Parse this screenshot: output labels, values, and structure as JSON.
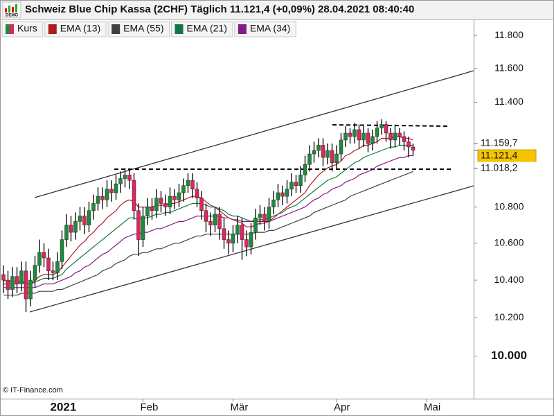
{
  "chart_data": {
    "type": "candlestick",
    "title": "Schweiz Blue Chip Kassa (2CHF) Täglich 11.121,4 (+0,09%) 28.04.2021 08:40:40",
    "logo": "DEMO",
    "copyright": "© IT-Finance.com",
    "log_scale": true,
    "grid": false,
    "ylim": [
      9.783,
      11.898
    ],
    "yticks": [
      {
        "value": 10.0,
        "label": "10.000",
        "bold": true
      },
      {
        "value": 10.2,
        "label": "10.200"
      },
      {
        "value": 10.4,
        "label": "10.400"
      },
      {
        "value": 10.6,
        "label": "10.600"
      },
      {
        "value": 10.8,
        "label": "10.800"
      },
      {
        "value": 11.4,
        "label": "11.400"
      },
      {
        "value": 11.6,
        "label": "11.600"
      },
      {
        "value": 11.8,
        "label": "11.800"
      }
    ],
    "categories": [
      null,
      null,
      null,
      null,
      null,
      null,
      null,
      null,
      null,
      null,
      null,
      "2021",
      null,
      null,
      null,
      null,
      null,
      null,
      null,
      null,
      null,
      null,
      null,
      null,
      null,
      null,
      null,
      null,
      null,
      null,
      null,
      "Feb",
      null,
      null,
      null,
      null,
      null,
      null,
      null,
      null,
      null,
      null,
      null,
      null,
      null,
      null,
      null,
      null,
      null,
      null,
      null,
      "Mär",
      null,
      null,
      null,
      null,
      null,
      null,
      null,
      null,
      null,
      null,
      null,
      null,
      null,
      null,
      null,
      null,
      null,
      null,
      null,
      null,
      null,
      null,
      "Apr",
      null,
      null,
      null,
      null,
      null,
      null,
      null,
      null,
      null,
      null,
      null,
      null,
      null,
      null,
      null,
      null,
      null,
      null,
      null,
      "Mai",
      null,
      null,
      null,
      null,
      null
    ],
    "price_labels": [
      {
        "label": "11.159,7",
        "value": 11.1597,
        "highlight": false
      },
      {
        "label": "11.121,4",
        "value": 11.1214,
        "highlight": true
      },
      {
        "label": "11.018,2",
        "value": 11.0182,
        "highlight": false
      }
    ],
    "series": [
      {
        "name": "Kurs",
        "up_color": "#1f8a3c",
        "down_color": "#e0245e",
        "open": [
          10.43,
          10.4,
          10.35,
          10.42,
          10.38,
          10.45,
          10.3,
          10.4,
          10.48,
          10.55,
          10.52,
          10.45,
          10.44,
          10.5,
          10.62,
          10.7,
          10.66,
          10.72,
          10.75,
          10.7,
          10.78,
          10.82,
          10.86,
          10.84,
          10.9,
          10.88,
          10.93,
          10.96,
          10.98,
          10.95,
          10.78,
          10.62,
          10.75,
          10.8,
          10.78,
          10.85,
          10.82,
          10.8,
          10.86,
          10.84,
          10.88,
          10.92,
          10.95,
          10.9,
          10.85,
          10.78,
          10.72,
          10.7,
          10.76,
          10.68,
          10.62,
          10.6,
          10.65,
          10.7,
          10.62,
          10.58,
          10.66,
          10.74,
          10.76,
          10.72,
          10.8,
          10.84,
          10.88,
          10.86,
          10.9,
          10.94,
          10.92,
          10.98,
          11.04,
          11.1,
          11.12,
          11.15,
          11.08,
          11.12,
          11.05,
          11.1,
          11.18,
          11.22,
          11.2,
          11.24,
          11.18,
          11.22,
          11.16,
          11.2,
          11.25,
          11.27,
          11.22,
          11.18,
          11.22,
          11.2,
          11.17,
          11.14,
          null,
          null,
          null,
          null,
          null,
          null,
          null,
          null
        ],
        "high": [
          10.48,
          10.45,
          10.47,
          10.47,
          10.5,
          10.5,
          10.45,
          10.53,
          10.62,
          10.6,
          10.57,
          10.5,
          10.55,
          10.67,
          10.76,
          10.75,
          10.77,
          10.8,
          10.8,
          10.83,
          10.87,
          10.91,
          10.91,
          10.95,
          10.95,
          10.98,
          11.0,
          11.02,
          11.01,
          10.99,
          10.82,
          10.8,
          10.85,
          10.85,
          10.9,
          10.89,
          10.87,
          10.91,
          10.9,
          10.93,
          10.96,
          10.99,
          10.99,
          10.94,
          10.89,
          10.82,
          10.77,
          10.8,
          10.8,
          10.74,
          10.67,
          10.7,
          10.75,
          10.74,
          10.67,
          10.71,
          10.79,
          10.81,
          10.8,
          10.85,
          10.89,
          10.93,
          10.92,
          10.95,
          10.99,
          10.98,
          11.03,
          11.09,
          11.15,
          11.17,
          11.19,
          11.19,
          11.16,
          11.16,
          11.15,
          11.22,
          11.26,
          11.25,
          11.28,
          11.27,
          11.26,
          11.25,
          11.24,
          11.29,
          11.3,
          11.29,
          11.25,
          11.27,
          11.25,
          11.23,
          11.2,
          11.16,
          null,
          null,
          null,
          null,
          null,
          null,
          null,
          null
        ],
        "low": [
          10.33,
          10.3,
          10.31,
          10.33,
          10.34,
          10.23,
          10.26,
          10.36,
          10.44,
          10.47,
          10.4,
          10.4,
          10.4,
          10.46,
          10.58,
          10.61,
          10.62,
          10.67,
          10.65,
          10.66,
          10.73,
          10.78,
          10.79,
          10.8,
          10.83,
          10.84,
          10.88,
          10.91,
          10.9,
          10.73,
          10.53,
          10.58,
          10.7,
          10.73,
          10.74,
          10.77,
          10.75,
          10.76,
          10.79,
          10.8,
          10.83,
          10.88,
          10.85,
          10.8,
          10.73,
          10.66,
          10.64,
          10.66,
          10.62,
          10.57,
          10.54,
          10.55,
          10.6,
          10.51,
          10.53,
          10.54,
          10.62,
          10.7,
          10.67,
          10.68,
          10.76,
          10.8,
          10.81,
          10.82,
          10.86,
          10.88,
          10.88,
          10.94,
          11.0,
          11.05,
          11.08,
          11.03,
          11.04,
          11.0,
          11.01,
          11.06,
          11.14,
          11.16,
          11.16,
          11.13,
          11.14,
          11.11,
          11.12,
          11.16,
          11.21,
          11.17,
          11.13,
          11.14,
          11.15,
          11.12,
          11.08,
          11.09,
          null,
          null,
          null,
          null,
          null,
          null,
          null,
          null
        ],
        "close": [
          10.4,
          10.35,
          10.42,
          10.38,
          10.45,
          10.3,
          10.4,
          10.48,
          10.55,
          10.52,
          10.45,
          10.44,
          10.5,
          10.62,
          10.7,
          10.66,
          10.72,
          10.75,
          10.7,
          10.78,
          10.82,
          10.86,
          10.84,
          10.9,
          10.88,
          10.93,
          10.96,
          10.98,
          10.95,
          10.78,
          10.62,
          10.75,
          10.8,
          10.78,
          10.85,
          10.82,
          10.8,
          10.86,
          10.84,
          10.88,
          10.92,
          10.95,
          10.9,
          10.85,
          10.78,
          10.72,
          10.7,
          10.76,
          10.68,
          10.62,
          10.6,
          10.65,
          10.7,
          10.62,
          10.58,
          10.66,
          10.74,
          10.76,
          10.72,
          10.8,
          10.84,
          10.88,
          10.86,
          10.9,
          10.94,
          10.92,
          10.98,
          11.04,
          11.1,
          11.12,
          11.15,
          11.08,
          11.12,
          11.05,
          11.1,
          11.18,
          11.22,
          11.2,
          11.24,
          11.18,
          11.22,
          11.16,
          11.2,
          11.25,
          11.27,
          11.22,
          11.18,
          11.22,
          11.2,
          11.17,
          11.14,
          11.1214,
          null,
          null,
          null,
          null,
          null,
          null,
          null,
          null
        ]
      },
      {
        "name": "EMA (13)",
        "color": "#b01c1c",
        "values": [
          10.4,
          10.39,
          10.4,
          10.39,
          10.4,
          10.38,
          10.38,
          10.4,
          10.42,
          10.43,
          10.43,
          10.43,
          10.44,
          10.47,
          10.5,
          10.53,
          10.56,
          10.59,
          10.61,
          10.64,
          10.66,
          10.69,
          10.71,
          10.74,
          10.76,
          10.78,
          10.81,
          10.83,
          10.84,
          10.83,
          10.8,
          10.8,
          10.8,
          10.8,
          10.81,
          10.81,
          10.81,
          10.82,
          10.82,
          10.83,
          10.84,
          10.85,
          10.86,
          10.86,
          10.85,
          10.83,
          10.81,
          10.8,
          10.78,
          10.76,
          10.74,
          10.73,
          10.72,
          10.71,
          10.69,
          10.69,
          10.7,
          10.71,
          10.71,
          10.72,
          10.74,
          10.76,
          10.78,
          10.8,
          10.82,
          10.84,
          10.86,
          10.88,
          10.92,
          10.95,
          10.98,
          11.0,
          11.02,
          11.03,
          11.04,
          11.06,
          11.09,
          11.1,
          11.12,
          11.13,
          11.15,
          11.15,
          11.16,
          11.17,
          11.19,
          11.19,
          11.19,
          11.2,
          11.2,
          11.19,
          11.19,
          11.18,
          null,
          null,
          null,
          null,
          null,
          null,
          null,
          null
        ]
      },
      {
        "name": "EMA (55)",
        "color": "#404040",
        "values": [
          10.32,
          10.32,
          10.32,
          10.32,
          10.33,
          10.33,
          10.33,
          10.33,
          10.34,
          10.34,
          10.34,
          10.34,
          10.35,
          10.35,
          10.36,
          10.37,
          10.38,
          10.39,
          10.4,
          10.41,
          10.42,
          10.43,
          10.45,
          10.46,
          10.47,
          10.49,
          10.5,
          10.51,
          10.53,
          10.54,
          10.54,
          10.55,
          10.55,
          10.56,
          10.57,
          10.57,
          10.58,
          10.59,
          10.6,
          10.6,
          10.61,
          10.62,
          10.63,
          10.64,
          10.64,
          10.65,
          10.65,
          10.65,
          10.65,
          10.65,
          10.65,
          10.65,
          10.65,
          10.65,
          10.65,
          10.65,
          10.66,
          10.66,
          10.66,
          10.67,
          10.67,
          10.68,
          10.69,
          10.7,
          10.71,
          10.72,
          10.73,
          10.74,
          10.75,
          10.77,
          10.78,
          10.79,
          10.8,
          10.81,
          10.82,
          10.83,
          10.84,
          10.86,
          10.87,
          10.88,
          10.89,
          10.9,
          10.91,
          10.92,
          10.93,
          10.94,
          10.95,
          10.96,
          10.97,
          10.98,
          10.99,
          11.0,
          null,
          null,
          null,
          null,
          null,
          null,
          null,
          null
        ]
      },
      {
        "name": "EMA (21)",
        "color": "#13764a",
        "values": [
          10.38,
          10.38,
          10.38,
          10.38,
          10.39,
          10.38,
          10.38,
          10.39,
          10.4,
          10.41,
          10.41,
          10.41,
          10.42,
          10.43,
          10.46,
          10.48,
          10.5,
          10.52,
          10.54,
          10.56,
          10.58,
          10.6,
          10.62,
          10.64,
          10.66,
          10.68,
          10.7,
          10.72,
          10.74,
          10.74,
          10.73,
          10.74,
          10.74,
          10.75,
          10.76,
          10.76,
          10.77,
          10.77,
          10.78,
          10.79,
          10.8,
          10.81,
          10.82,
          10.82,
          10.82,
          10.81,
          10.8,
          10.8,
          10.79,
          10.78,
          10.76,
          10.75,
          10.75,
          10.74,
          10.73,
          10.72,
          10.73,
          10.73,
          10.73,
          10.74,
          10.75,
          10.76,
          10.77,
          10.79,
          10.8,
          10.81,
          10.83,
          10.85,
          10.87,
          10.89,
          10.91,
          10.93,
          10.95,
          10.96,
          10.97,
          10.99,
          11.01,
          11.03,
          11.05,
          11.06,
          11.08,
          11.09,
          11.1,
          11.11,
          11.12,
          11.13,
          11.14,
          11.14,
          11.15,
          11.15,
          11.15,
          11.15,
          null,
          null,
          null,
          null,
          null,
          null,
          null,
          null
        ]
      },
      {
        "name": "EMA (34)",
        "color": "#861a86",
        "values": [
          10.36,
          10.36,
          10.36,
          10.36,
          10.36,
          10.36,
          10.36,
          10.36,
          10.37,
          10.38,
          10.38,
          10.38,
          10.39,
          10.4,
          10.41,
          10.42,
          10.44,
          10.45,
          10.47,
          10.48,
          10.5,
          10.52,
          10.54,
          10.55,
          10.57,
          10.59,
          10.61,
          10.63,
          10.64,
          10.65,
          10.65,
          10.66,
          10.66,
          10.67,
          10.68,
          10.68,
          10.69,
          10.7,
          10.71,
          10.72,
          10.72,
          10.73,
          10.74,
          10.75,
          10.75,
          10.75,
          10.75,
          10.75,
          10.75,
          10.74,
          10.74,
          10.73,
          10.73,
          10.72,
          10.72,
          10.72,
          10.72,
          10.72,
          10.72,
          10.72,
          10.73,
          10.74,
          10.75,
          10.76,
          10.77,
          10.78,
          10.79,
          10.8,
          10.82,
          10.84,
          10.85,
          10.87,
          10.88,
          10.9,
          10.91,
          10.92,
          10.94,
          10.95,
          10.96,
          10.98,
          10.99,
          11.0,
          11.01,
          11.03,
          11.04,
          11.05,
          11.06,
          11.07,
          11.08,
          11.08,
          11.09,
          11.09,
          null,
          null,
          null,
          null,
          null,
          null,
          null,
          null
        ]
      }
    ]
  }
}
